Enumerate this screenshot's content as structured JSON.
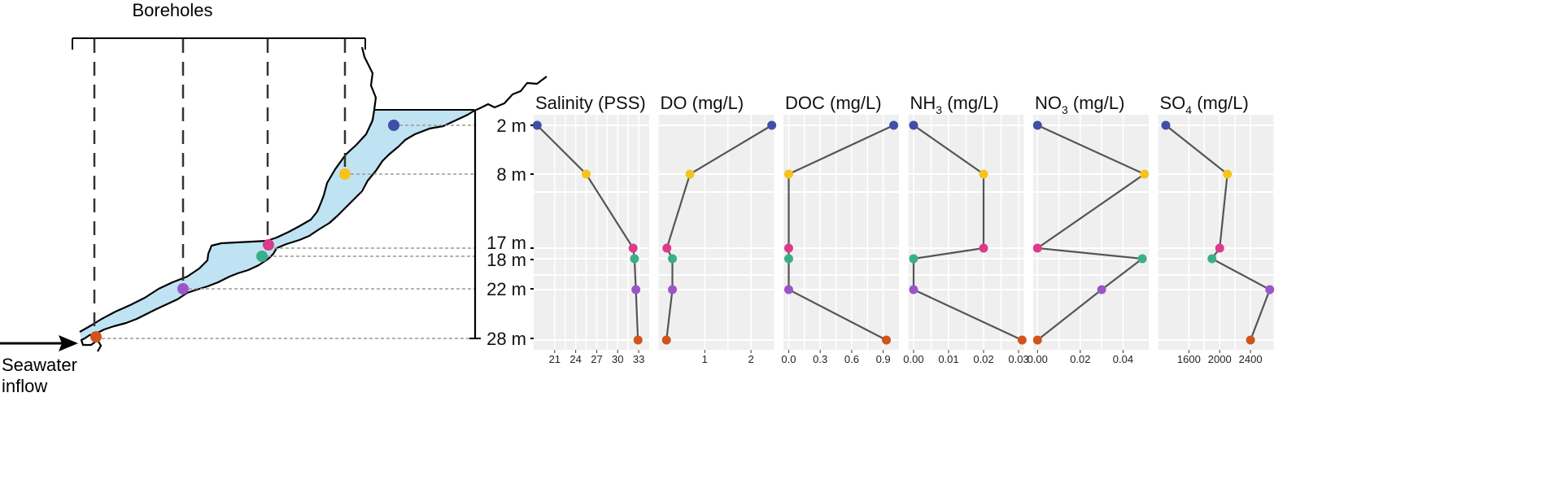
{
  "schematic": {
    "title": "Boreholes",
    "inflow_line1": "Seawater",
    "inflow_line2": "inflow",
    "depth_labels": [
      "2 m",
      "8 m",
      "17 m",
      "18 m",
      "22 m",
      "28 m"
    ],
    "point_colors": [
      "#3F4FA8",
      "#F5C31C",
      "#DD3A8C",
      "#3AAE8A",
      "#9A55C8",
      "#D2531C"
    ]
  },
  "colors": {
    "water": "#BFE3F2",
    "panel_bg": "#EFEFEF",
    "grid": "#FFFFFF",
    "line": "#555555",
    "ink": "#111111"
  },
  "chart_data": {
    "type": "line",
    "orientation": "profile",
    "depths_m": [
      2,
      8,
      17,
      18,
      22,
      28
    ],
    "panels": [
      {
        "title": "Salinity (PSS)",
        "sub": "",
        "suffix": "",
        "xlim": [
          18,
          34.5
        ],
        "ticks": [
          21,
          24,
          27,
          30,
          33
        ],
        "tick_labels": [
          "21",
          "24",
          "27",
          "30",
          "33"
        ],
        "values": [
          18.5,
          25.5,
          32.2,
          32.4,
          32.6,
          32.9
        ]
      },
      {
        "title": "DO (mg/L)",
        "sub": "",
        "suffix": "",
        "xlim": [
          0,
          2.5
        ],
        "ticks": [
          1,
          2
        ],
        "tick_labels": [
          "1",
          "2"
        ],
        "values": [
          2.45,
          0.68,
          0.18,
          0.3,
          0.3,
          0.17
        ]
      },
      {
        "title": "DOC (mg/L)",
        "sub": "",
        "suffix": "",
        "xlim": [
          -0.05,
          1.05
        ],
        "ticks": [
          0,
          0.3,
          0.6,
          0.9
        ],
        "tick_labels": [
          "0.0",
          "0.3",
          "0.6",
          "0.9"
        ],
        "values": [
          1.0,
          0.0,
          0.0,
          0.0,
          0.0,
          0.93
        ]
      },
      {
        "title": "NH",
        "sub": "3",
        "suffix": " (mg/L)",
        "xlim": [
          -0.0015,
          0.0315
        ],
        "ticks": [
          0,
          0.01,
          0.02,
          0.03
        ],
        "tick_labels": [
          "0.00",
          "0.01",
          "0.02",
          "0.03"
        ],
        "values": [
          0.0,
          0.02,
          0.02,
          0.0,
          0.0,
          0.031
        ]
      },
      {
        "title": "NO",
        "sub": "3",
        "suffix": " (mg/L)",
        "xlim": [
          -0.002,
          0.052
        ],
        "ticks": [
          0,
          0.02,
          0.04
        ],
        "tick_labels": [
          "0.00",
          "0.02",
          "0.04"
        ],
        "values": [
          0.0,
          0.05,
          0.0,
          0.049,
          0.03,
          0.0
        ]
      },
      {
        "title": "SO",
        "sub": "4",
        "suffix": " (mg/L)",
        "xlim": [
          1200,
          2700
        ],
        "ticks": [
          1600,
          2000,
          2400
        ],
        "tick_labels": [
          "1600",
          "2000",
          "2400"
        ],
        "values": [
          1300,
          2100,
          2000,
          1900,
          2650,
          2400
        ]
      }
    ]
  }
}
